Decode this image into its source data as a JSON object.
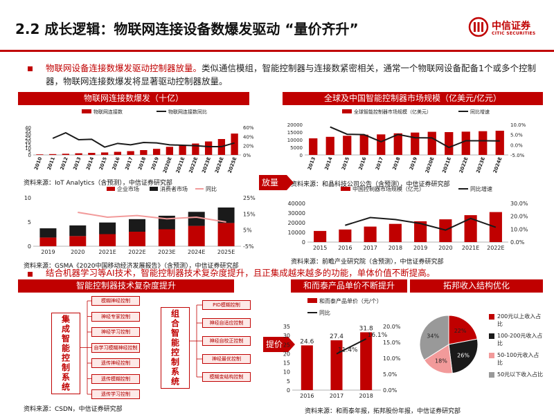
{
  "header": {
    "title": "2.2 成长逻辑：物联网连接设备数爆发驱动 “量价齐升”",
    "logo_text": "中信证券",
    "logo_sub": "CITIC SECURITIES"
  },
  "intro": {
    "highlight": "物联网设备连接数爆发驱动控制器放量。",
    "text": "类似通信模组，智能控制器与连接数紧密相关，通常一个物联网设备配备1个或多个控制器，物联网连接数爆发将显著驱动控制器放量。"
  },
  "section2": {
    "text": "结合机器学习等AI技术，智能控制器技术复杂度提升，且正集成越来越多的功能，单体价值不断提高。"
  },
  "panels": {
    "iot_title": "物联网连接数爆发（十亿）",
    "market_title": "全球及中国智能控制器市场规模（亿美元/亿元）",
    "tech_title": "智能控制器技术复杂度提升",
    "price_title": "和而泰产品单价不断提升",
    "revenue_title": "拓邦收入结构优化"
  },
  "arrows": {
    "volume": "放量",
    "price": "提价"
  },
  "sources": {
    "iot": "资料来源：IoT Analytics（含预测），中信证券研究部",
    "gsma": "资料来源：GSMA《2020中国移动经济发展报告》（含预测），中信证券研究部",
    "global": "资料来源：和晶科技公司公告（含预测），中信证券研究部",
    "china": "资料来源：前瞻产业研究院（含预测），中信证券研究部",
    "csdn": "资料来源：CSDN，中信证券研究部",
    "price": "资料来源：和而泰年报，拓邦股份年报，中信证券研究部"
  },
  "tech": {
    "integrated_label": "集成智能控制系统",
    "integrated_items": [
      "模糊神经控制",
      "神经专家控制",
      "神经学习控制",
      "自学习模糊神经控制",
      "遗传神经控制",
      "遗传模糊控制",
      "遗传学习控制"
    ],
    "combined_label": "组合智能控制系统",
    "combined_items": [
      "PID模糊控制",
      "神经自适应控制",
      "神经自校正控制",
      "神经最优控制",
      "模糊变结构控制"
    ]
  },
  "colors": {
    "accent": "#c00000",
    "dark": "#1a1a1a",
    "grey": "#999999",
    "pink": "#f29a9a"
  },
  "chart_data": [
    {
      "type": "bar",
      "categories": [
        "2010",
        "2011",
        "2012",
        "2013",
        "2014",
        "2015",
        "2016",
        "2017",
        "2018",
        "2019",
        "2020E",
        "2021E",
        "2022E",
        "2023E",
        "2024E",
        "2025E"
      ],
      "series": [
        {
          "name": "物联网连接数",
          "type": "bar",
          "axis": "left",
          "values": [
            0.8,
            1.2,
            1.7,
            2.4,
            3.0,
            3.6,
            4.5,
            5.5,
            7.0,
            8.8,
            11.7,
            13.8,
            16.5,
            19.5,
            23.0,
            30.9
          ]
        },
        {
          "name": "物联网连接数同比",
          "type": "line",
          "axis": "right",
          "values": [
            null,
            36,
            48,
            33,
            34,
            17,
            25,
            22,
            27,
            26,
            22,
            21,
            20,
            18,
            18,
            26
          ]
        }
      ],
      "ylim": [
        0,
        40
      ],
      "y2lim": [
        0,
        60
      ],
      "yticks": [
        0,
        5,
        10,
        15,
        20,
        25,
        30,
        35,
        40
      ],
      "y2ticks": [
        "0%",
        "20%",
        "40%",
        "60%"
      ]
    },
    {
      "type": "bar",
      "categories": [
        "2019",
        "2020",
        "2021E",
        "2022E",
        "2023E",
        "2024E",
        "2025E"
      ],
      "series": [
        {
          "name": "企业市场",
          "type": "bar",
          "stack": "s",
          "values": [
            1.8,
            2.1,
            2.5,
            3.0,
            3.5,
            4.2,
            4.8
          ]
        },
        {
          "name": "消费者市场",
          "type": "bar",
          "stack": "s",
          "values": [
            1.9,
            2.2,
            2.4,
            2.6,
            2.8,
            2.9,
            3.2
          ]
        },
        {
          "name": "同比",
          "type": "line",
          "axis": "right",
          "values": [
            null,
            16,
            13,
            14,
            12,
            13,
            10
          ]
        }
      ],
      "ylim": [
        0,
        10
      ],
      "y2lim": [
        -5,
        25
      ],
      "yticks": [
        0,
        5,
        10
      ],
      "y2ticks": [
        "-5%",
        "5%",
        "15%",
        "25%"
      ]
    },
    {
      "type": "bar",
      "categories": [
        "2013",
        "2014",
        "2015",
        "2016",
        "2017",
        "2018",
        "2019",
        "2020E",
        "2021E",
        "2022E",
        "2023E",
        "2024E"
      ],
      "series": [
        {
          "name": "全球智能控制器市场规模（亿美元）",
          "type": "bar",
          "values": [
            10900,
            11900,
            12600,
            13300,
            13500,
            14200,
            14700,
            15200,
            15000,
            15300,
            15600,
            15900
          ]
        },
        {
          "name": "同比增速",
          "type": "line",
          "axis": "right",
          "values": [
            null,
            8.8,
            5.2,
            5.0,
            1.5,
            5.1,
            3.5,
            3.4,
            -1.3,
            2.0,
            2.0,
            1.9
          ]
        }
      ],
      "ylim": [
        0,
        20000
      ],
      "y2lim": [
        -5,
        10
      ],
      "yticks": [
        0,
        5000,
        10000,
        15000,
        20000
      ],
      "y2ticks": [
        "-5.0%",
        "0.0%",
        "5.0%",
        "10.0%"
      ]
    },
    {
      "type": "bar",
      "categories": [
        "2015",
        "2016",
        "2017",
        "2018",
        "2019",
        "2020",
        "2021E",
        "2022E"
      ],
      "series": [
        {
          "name": "中国控制器市场规模（亿元）",
          "type": "bar",
          "values": [
            11500,
            13000,
            16000,
            18800,
            21500,
            23500,
            27800,
            31000
          ]
        },
        {
          "name": "同比增速",
          "type": "line",
          "axis": "right",
          "values": [
            null,
            13.0,
            19.0,
            17.5,
            14.4,
            9.3,
            18.3,
            11.5
          ]
        }
      ],
      "ylim": [
        0,
        40000
      ],
      "y2lim": [
        0,
        30
      ],
      "yticks": [
        0,
        10000,
        20000,
        30000,
        40000
      ],
      "y2ticks": [
        "0.0%",
        "10.0%",
        "20.0%",
        "30.0%"
      ]
    },
    {
      "type": "bar",
      "categories": [
        "2016",
        "2017",
        "2018"
      ],
      "series": [
        {
          "name": "和而泰产品单价（元/个）",
          "type": "bar",
          "values": [
            24.6,
            27.4,
            31.8
          ],
          "labels": [
            "24.6",
            "27.4",
            "31.8"
          ]
        },
        {
          "name": "同比",
          "type": "line",
          "axis": "right",
          "values": [
            null,
            11.4,
            16.1
          ],
          "labels": [
            "",
            "11.4%",
            "16.1%"
          ]
        }
      ],
      "ylim": [
        0,
        35
      ],
      "y2lim": [
        0,
        20
      ],
      "yticks": [
        0,
        5,
        10,
        15,
        20,
        25,
        30,
        35
      ],
      "y2ticks": [
        "0.0%",
        "5.0%",
        "10.0%",
        "15.0%",
        "20.0%"
      ]
    },
    {
      "type": "pie",
      "labels": [
        "200元以上收入占比",
        "100-200元收入占比",
        "50-100元收入占比",
        "50元以下收入占比"
      ],
      "values": [
        22,
        26,
        18,
        34
      ],
      "value_labels": [
        "22%",
        "26%",
        "18%",
        "34%"
      ],
      "colors": [
        "#c00000",
        "#1a1a1a",
        "#f29a9a",
        "#999999"
      ]
    }
  ]
}
